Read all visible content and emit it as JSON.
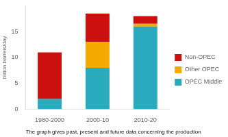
{
  "chart_data": {
    "type": "bar",
    "subtitle": "The graph gives past, present and future data concerning the production",
    "categories": [
      "1980-2000",
      "2000-10",
      "2010-20"
    ],
    "series": [
      {
        "name": "OPEC Middle  East",
        "color": "#29AABD",
        "values": [
          2.0,
          8.0,
          16.0
        ]
      },
      {
        "name": "Other OPEC",
        "color": "#F5A800",
        "values": [
          0.0,
          5.0,
          0.5
        ]
      },
      {
        "name": "Non-OPEC",
        "color": "#CC1010",
        "values": [
          9.0,
          5.5,
          1.5
        ]
      }
    ],
    "ylabel": "milion barrels/day",
    "ylim": [
      0,
      20
    ],
    "yticks": [
      0,
      5,
      10,
      15
    ],
    "stacked": true,
    "grid": false,
    "legend": "right"
  }
}
